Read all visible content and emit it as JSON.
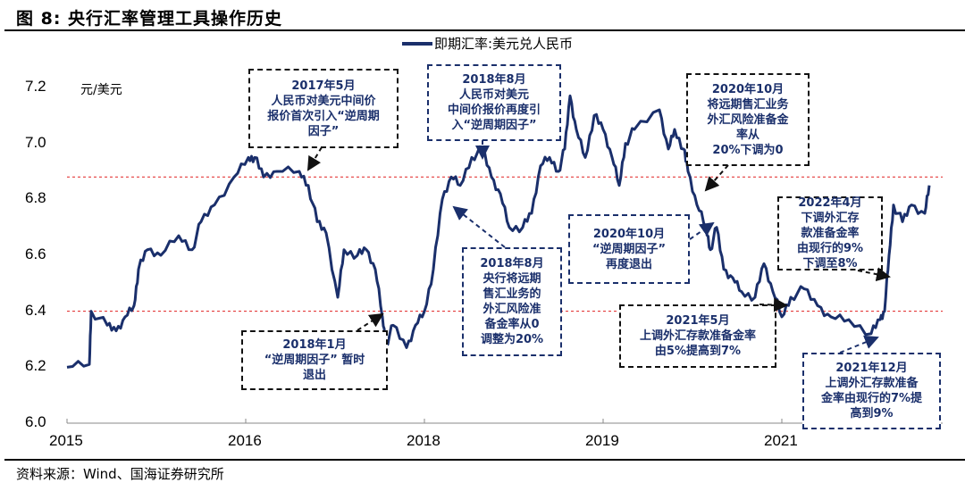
{
  "title": "图 8:  央行汇率管理工具操作历史",
  "source": "资料来源：Wind、国海证券研究所",
  "chart_data": {
    "type": "line",
    "title": "央行汇率管理工具操作历史",
    "ylabel": "元/美元",
    "ylim": [
      6.0,
      7.2
    ],
    "yticks": [
      "6.0",
      "6.2",
      "6.4",
      "6.6",
      "6.8",
      "7.0",
      "7.2"
    ],
    "xtick_labels": [
      "2015",
      "2016",
      "2018",
      "2019",
      "2021"
    ],
    "xlim": [
      0,
      4.9
    ],
    "legend": {
      "label": "即期汇率:美元兑人民币",
      "placement": "top"
    },
    "reference_lines": [
      6.88,
      6.4
    ],
    "series": [
      {
        "name": "即期汇率:美元兑人民币",
        "color": "#1a2f6b",
        "points": [
          [
            0,
            6.2
          ],
          [
            0.125,
            6.21
          ],
          [
            0.135,
            6.4
          ],
          [
            0.225,
            6.35
          ],
          [
            0.275,
            6.33
          ],
          [
            0.325,
            6.38
          ],
          [
            0.375,
            6.42
          ],
          [
            0.4,
            6.55
          ],
          [
            0.45,
            6.62
          ],
          [
            0.525,
            6.6
          ],
          [
            0.625,
            6.67
          ],
          [
            0.7,
            6.62
          ],
          [
            0.75,
            6.72
          ],
          [
            0.825,
            6.78
          ],
          [
            0.935,
            6.88
          ],
          [
            1.015,
            6.95
          ],
          [
            1.05,
            6.95
          ],
          [
            1.1,
            6.88
          ],
          [
            1.175,
            6.9
          ],
          [
            1.3,
            6.9
          ],
          [
            1.35,
            6.85
          ],
          [
            1.4,
            6.72
          ],
          [
            1.45,
            6.68
          ],
          [
            1.515,
            6.45
          ],
          [
            1.55,
            6.62
          ],
          [
            1.625,
            6.6
          ],
          [
            1.675,
            6.62
          ],
          [
            1.725,
            6.55
          ],
          [
            1.765,
            6.38
          ],
          [
            1.785,
            6.28
          ],
          [
            1.825,
            6.35
          ],
          [
            1.9,
            6.27
          ],
          [
            1.95,
            6.35
          ],
          [
            2.0,
            6.4
          ],
          [
            2.05,
            6.55
          ],
          [
            2.1,
            6.8
          ],
          [
            2.15,
            6.88
          ],
          [
            2.2,
            6.85
          ],
          [
            2.265,
            6.95
          ],
          [
            2.325,
            6.98
          ],
          [
            2.375,
            6.88
          ],
          [
            2.425,
            6.82
          ],
          [
            2.475,
            6.7
          ],
          [
            2.55,
            6.7
          ],
          [
            2.6,
            6.75
          ],
          [
            2.65,
            6.92
          ],
          [
            2.7,
            6.95
          ],
          [
            2.75,
            6.9
          ],
          [
            2.785,
            6.98
          ],
          [
            2.815,
            7.17
          ],
          [
            2.85,
            7.05
          ],
          [
            2.9,
            6.95
          ],
          [
            2.95,
            7.1
          ],
          [
            3.0,
            7.05
          ],
          [
            3.05,
            6.95
          ],
          [
            3.09,
            6.85
          ],
          [
            3.125,
            7.0
          ],
          [
            3.175,
            7.05
          ],
          [
            3.315,
            7.12
          ],
          [
            3.365,
            6.98
          ],
          [
            3.4,
            7.05
          ],
          [
            3.45,
            6.98
          ],
          [
            3.475,
            6.9
          ],
          [
            3.525,
            6.78
          ],
          [
            3.575,
            6.7
          ],
          [
            3.6,
            6.62
          ],
          [
            3.635,
            6.7
          ],
          [
            3.675,
            6.55
          ],
          [
            3.725,
            6.52
          ],
          [
            3.775,
            6.47
          ],
          [
            3.85,
            6.45
          ],
          [
            3.9,
            6.57
          ],
          [
            3.95,
            6.47
          ],
          [
            4.0,
            6.38
          ],
          [
            4.05,
            6.45
          ],
          [
            4.125,
            6.48
          ],
          [
            4.2,
            6.42
          ],
          [
            4.275,
            6.38
          ],
          [
            4.375,
            6.37
          ],
          [
            4.5,
            6.32
          ],
          [
            4.55,
            6.37
          ],
          [
            4.575,
            6.4
          ],
          [
            4.6,
            6.6
          ],
          [
            4.625,
            6.78
          ],
          [
            4.675,
            6.72
          ],
          [
            4.725,
            6.78
          ],
          [
            4.8,
            6.75
          ],
          [
            4.825,
            6.85
          ]
        ]
      }
    ],
    "annotations": [
      {
        "lines": [
          "2017年5月",
          "人民币对美元中间价",
          "报价首次引入“逆周期",
          "因子”"
        ]
      },
      {
        "lines": [
          "2018年8月",
          "人民币对美元",
          "中间价报价再度引",
          "入“逆周期因子”"
        ]
      },
      {
        "lines": [
          "2020年10月",
          "将远期售汇业务",
          "外汇风险准备金",
          "率从",
          "20%下调为0"
        ]
      },
      {
        "lines": [
          "2020年10月",
          "“逆周期因子”",
          "再度退出"
        ]
      },
      {
        "lines": [
          "2022年4月",
          "下调外汇存",
          "款准备金率",
          "由现行的9%",
          "下调至8%"
        ]
      },
      {
        "lines": [
          "2018年8月",
          "央行将远期",
          "售汇业务的",
          "外汇风险准",
          "备金率从0",
          "调整为20%"
        ]
      },
      {
        "lines": [
          "2018年1月",
          "“逆周期因子” 暂时",
          "退出"
        ]
      },
      {
        "lines": [
          "2021年5月",
          "上调外汇存款准备金率",
          "由5%提高到7%"
        ]
      },
      {
        "lines": [
          "2021年12月",
          "上调外汇存款准备",
          "金率由现行的7%提",
          "高到9%"
        ]
      }
    ]
  }
}
